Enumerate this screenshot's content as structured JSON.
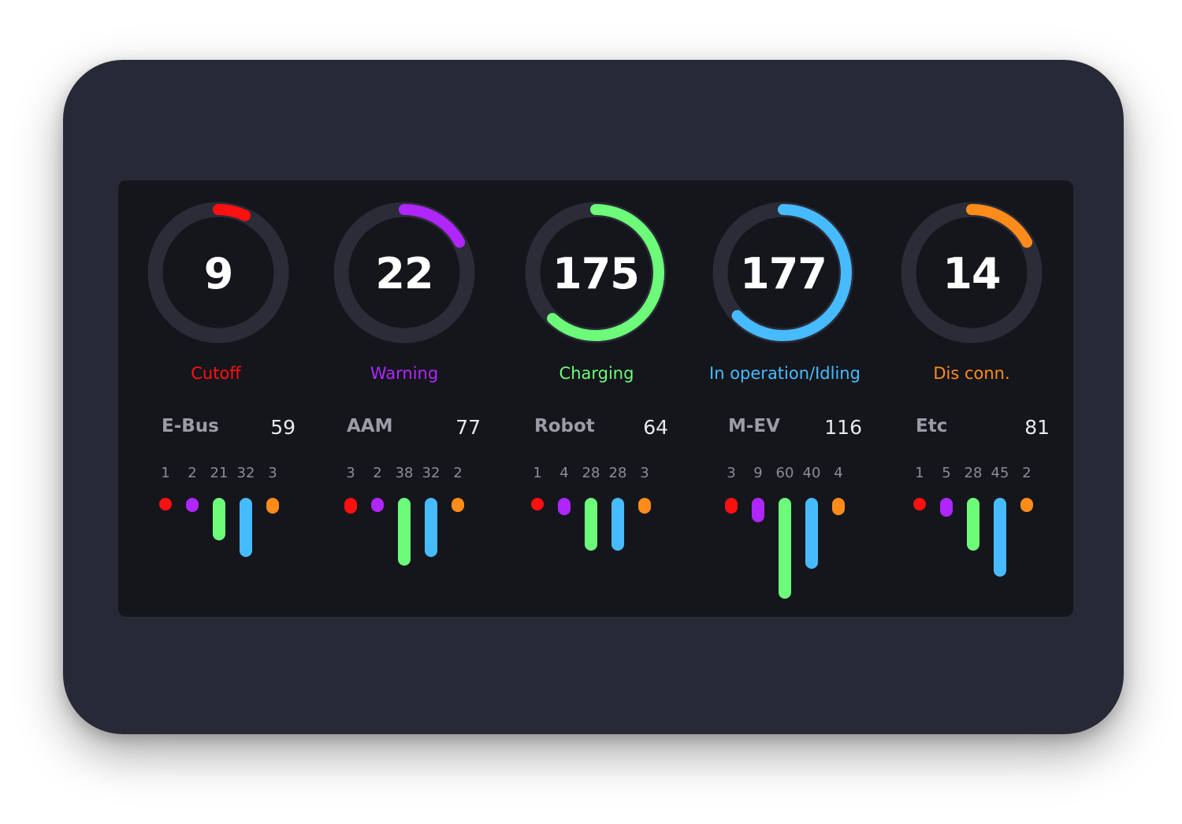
{
  "gauges": [
    {
      "value": "9",
      "label": "Cutoff",
      "color": "#ff1010",
      "fill": 0.07
    },
    {
      "value": "22",
      "label": "Warning",
      "color": "#b026ff",
      "fill": 0.17
    },
    {
      "value": "175",
      "label": "Charging",
      "color": "#6dfb7a",
      "fill": 0.62
    },
    {
      "value": "177",
      "label": "In operation/Idling",
      "color": "#47bbff",
      "fill": 0.63
    },
    {
      "value": "14",
      "label": "Dis conn.",
      "color": "#ff8c1a",
      "fill": 0.17
    }
  ],
  "categories": [
    {
      "name": "E-Bus",
      "total": "59",
      "counts": [
        "1",
        "2",
        "21",
        "32",
        "3"
      ]
    },
    {
      "name": "AAM",
      "total": "77",
      "counts": [
        "3",
        "2",
        "38",
        "32",
        "2"
      ]
    },
    {
      "name": "Robot",
      "total": "64",
      "counts": [
        "1",
        "4",
        "28",
        "28",
        "3"
      ]
    },
    {
      "name": "M-EV",
      "total": "116",
      "counts": [
        "3",
        "9",
        "60",
        "40",
        "4"
      ]
    },
    {
      "name": "Etc",
      "total": "81",
      "counts": [
        "1",
        "5",
        "28",
        "45",
        "2"
      ]
    }
  ],
  "status_colors": [
    "#ff1010",
    "#b026ff",
    "#6dfb7a",
    "#47bbff",
    "#ff8c1a"
  ],
  "track_color": "#2b2c38"
}
